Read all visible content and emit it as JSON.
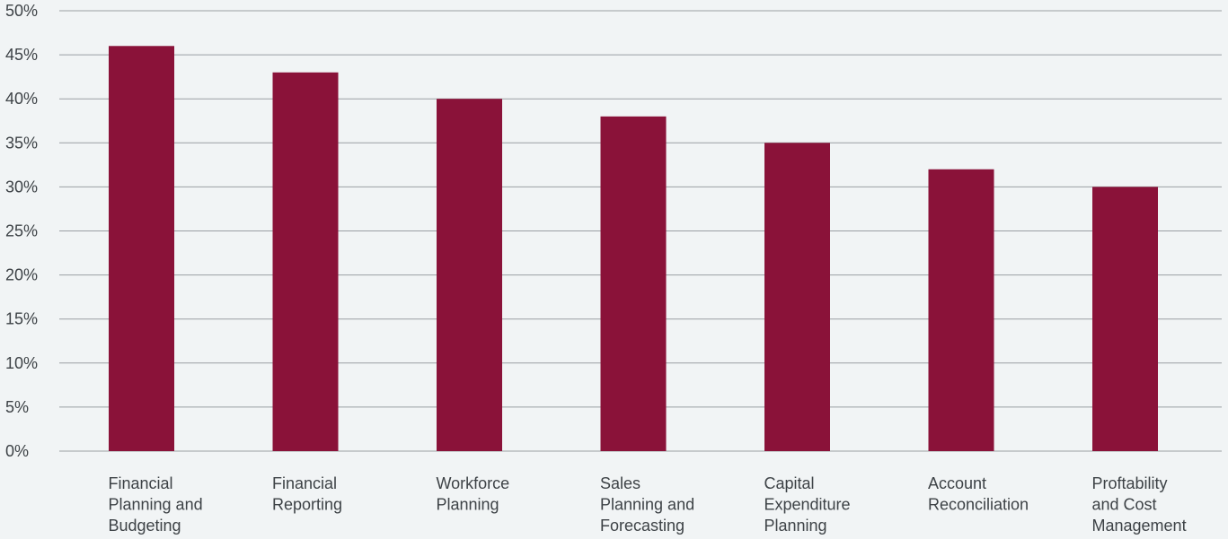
{
  "chart_data": {
    "type": "bar",
    "title": "",
    "xlabel": "",
    "ylabel": "",
    "ylim": [
      0,
      50
    ],
    "y_ticks": [
      "0%",
      "5%",
      "10%",
      "15%",
      "20%",
      "25%",
      "30%",
      "35%",
      "40%",
      "45%",
      "50%"
    ],
    "y_tick_values": [
      0,
      5,
      10,
      15,
      20,
      25,
      30,
      35,
      40,
      45,
      50
    ],
    "grid": true,
    "categories": [
      [
        "Financial",
        "Planning and",
        "Budgeting"
      ],
      [
        "Financial",
        "Reporting"
      ],
      [
        "Workforce",
        "Planning"
      ],
      [
        "Sales",
        "Planning and",
        "Forecasting"
      ],
      [
        "Capital",
        "Expenditure",
        "Planning"
      ],
      [
        "Account",
        "Reconciliation"
      ],
      [
        "Proftability",
        "and Cost",
        "Management"
      ]
    ],
    "values": [
      46,
      43,
      40,
      38,
      35,
      32,
      30
    ],
    "bar_color": "#8a1239",
    "grid_color": "#9a9fa3",
    "background": "#f1f4f5"
  }
}
